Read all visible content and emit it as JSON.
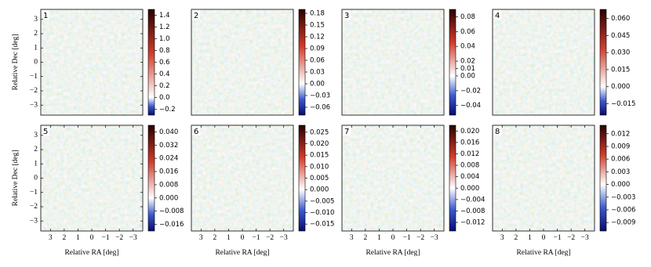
{
  "chart_data": [
    {
      "type": "image",
      "label": "1",
      "xlim": [
        3.7,
        -3.7
      ],
      "ylim": [
        -3.7,
        3.7
      ],
      "yticks": [
        {
          "value": -3,
          "label": "−3"
        },
        {
          "value": -2,
          "label": "−2"
        },
        {
          "value": -1,
          "label": "−1"
        },
        0,
        1,
        2,
        3
      ],
      "ylabel": "Relative Dec [deg]",
      "colormap": [
        "#0a0a6e",
        "#3a5ad0",
        "#ffffff",
        "#d23c2a",
        "#2a0000"
      ],
      "clim": [
        -0.3,
        1.5
      ],
      "cticks": [
        1.4,
        1.2,
        {
          "value": 1,
          "label": "1.0"
        },
        0.8,
        0.6,
        0.4,
        0.2,
        {
          "value": 0,
          "label": "0.0"
        },
        {
          "value": -0.2,
          "label": "−0.2"
        }
      ]
    },
    {
      "type": "image",
      "label": "2",
      "xlim": [
        3.7,
        -3.7
      ],
      "ylim": [
        -3.7,
        3.7
      ],
      "colormap": [
        "#0a0a6e",
        "#3a5ad0",
        "#ffffff",
        "#d23c2a",
        "#2a0000"
      ],
      "clim": [
        -0.08,
        0.19
      ],
      "cticks": [
        0.18,
        0.15,
        0.12,
        0.09,
        0.06,
        0.03,
        {
          "value": 0,
          "label": "0.00"
        },
        {
          "value": -0.03,
          "label": "−0.03"
        },
        {
          "value": -0.06,
          "label": "−0.06"
        }
      ]
    },
    {
      "type": "image",
      "label": "3",
      "xlim": [
        3.7,
        -3.7
      ],
      "ylim": [
        -3.7,
        3.7
      ],
      "colormap": [
        "#0a0a6e",
        "#3a5ad0",
        "#ffffff",
        "#d23c2a",
        "#2a0000"
      ],
      "clim": [
        -0.053,
        0.09
      ],
      "cticks": [
        0.08,
        0.06,
        0.04,
        0.02,
        0.01,
        {
          "value": 0,
          "label": "0.00"
        },
        {
          "value": -0.02,
          "label": "−0.02"
        },
        {
          "value": -0.04,
          "label": "−0.04"
        }
      ]
    },
    {
      "type": "image",
      "label": "4",
      "xlim": [
        3.7,
        -3.7
      ],
      "ylim": [
        -3.7,
        3.7
      ],
      "colormap": [
        "#0a0a6e",
        "#3a5ad0",
        "#ffffff",
        "#d23c2a",
        "#2a0000"
      ],
      "clim": [
        -0.025,
        0.068
      ],
      "cticks": [
        {
          "value": 0.06,
          "label": "0.060"
        },
        0.045,
        {
          "value": 0.03,
          "label": "0.030"
        },
        0.015,
        {
          "value": 0,
          "label": "0.000"
        },
        {
          "value": -0.015,
          "label": "−0.015"
        }
      ]
    },
    {
      "type": "image",
      "label": "5",
      "xlim": [
        3.7,
        -3.7
      ],
      "ylim": [
        -3.7,
        3.7
      ],
      "xticks": [
        3,
        2,
        1,
        0,
        {
          "value": -1,
          "label": "−1"
        },
        {
          "value": -2,
          "label": "−2"
        },
        {
          "value": -3,
          "label": "−3"
        }
      ],
      "yticks": [
        {
          "value": -3,
          "label": "−3"
        },
        {
          "value": -2,
          "label": "−2"
        },
        {
          "value": -1,
          "label": "−1"
        },
        0,
        1,
        2,
        3
      ],
      "xlabel": "Relative RA [deg]",
      "ylabel": "Relative Dec [deg]",
      "colormap": [
        "#0a0a6e",
        "#3a5ad0",
        "#ffffff",
        "#d23c2a",
        "#2a0000"
      ],
      "clim": [
        -0.02,
        0.044
      ],
      "cticks": [
        {
          "value": 0.04,
          "label": "0.040"
        },
        0.032,
        0.024,
        0.016,
        0.008,
        {
          "value": 0,
          "label": "0.000"
        },
        {
          "value": -0.008,
          "label": "−0.008"
        },
        {
          "value": -0.016,
          "label": "−0.016"
        }
      ]
    },
    {
      "type": "image",
      "label": "6",
      "xlim": [
        3.7,
        -3.7
      ],
      "ylim": [
        -3.7,
        3.7
      ],
      "xticks": [
        3,
        2,
        1,
        0,
        {
          "value": -1,
          "label": "−1"
        },
        {
          "value": -2,
          "label": "−2"
        },
        {
          "value": -3,
          "label": "−3"
        }
      ],
      "xlabel": "Relative RA [deg]",
      "colormap": [
        "#0a0a6e",
        "#3a5ad0",
        "#ffffff",
        "#d23c2a",
        "#2a0000"
      ],
      "clim": [
        -0.018,
        0.028
      ],
      "cticks": [
        0.025,
        {
          "value": 0.02,
          "label": "0.020"
        },
        0.015,
        {
          "value": 0.01,
          "label": "0.010"
        },
        0.005,
        {
          "value": 0,
          "label": "0.000"
        },
        {
          "value": -0.005,
          "label": "−0.005"
        },
        {
          "value": -0.01,
          "label": "−0.010"
        },
        {
          "value": -0.015,
          "label": "−0.015"
        }
      ]
    },
    {
      "type": "image",
      "label": "7",
      "xlim": [
        3.7,
        -3.7
      ],
      "ylim": [
        -3.7,
        3.7
      ],
      "xticks": [
        3,
        2,
        1,
        0,
        {
          "value": -1,
          "label": "−1"
        },
        {
          "value": -2,
          "label": "−2"
        },
        {
          "value": -3,
          "label": "−3"
        }
      ],
      "xlabel": "Relative RA [deg]",
      "colormap": [
        "#0a0a6e",
        "#3a5ad0",
        "#ffffff",
        "#d23c2a",
        "#2a0000"
      ],
      "clim": [
        -0.015,
        0.022
      ],
      "cticks": [
        {
          "value": 0.02,
          "label": "0.020"
        },
        0.016,
        0.012,
        0.008,
        0.004,
        {
          "value": 0,
          "label": "0.000"
        },
        {
          "value": -0.004,
          "label": "−0.004"
        },
        {
          "value": -0.008,
          "label": "−0.008"
        },
        {
          "value": -0.012,
          "label": "−0.012"
        }
      ]
    },
    {
      "type": "image",
      "label": "8",
      "xlim": [
        3.7,
        -3.7
      ],
      "ylim": [
        -3.7,
        3.7
      ],
      "xticks": [
        3,
        2,
        1,
        0,
        {
          "value": -1,
          "label": "−1"
        },
        {
          "value": -2,
          "label": "−2"
        },
        {
          "value": -3,
          "label": "−3"
        }
      ],
      "xlabel": "Relative RA [deg]",
      "colormap": [
        "#0a0a6e",
        "#3a5ad0",
        "#ffffff",
        "#d23c2a",
        "#2a0000"
      ],
      "clim": [
        -0.011,
        0.014
      ],
      "cticks": [
        0.012,
        0.009,
        0.006,
        0.003,
        {
          "value": 0,
          "label": "0.000"
        },
        {
          "value": -0.003,
          "label": "−0.003"
        },
        {
          "value": -0.006,
          "label": "−0.006"
        },
        {
          "value": -0.009,
          "label": "−0.009"
        }
      ]
    }
  ]
}
